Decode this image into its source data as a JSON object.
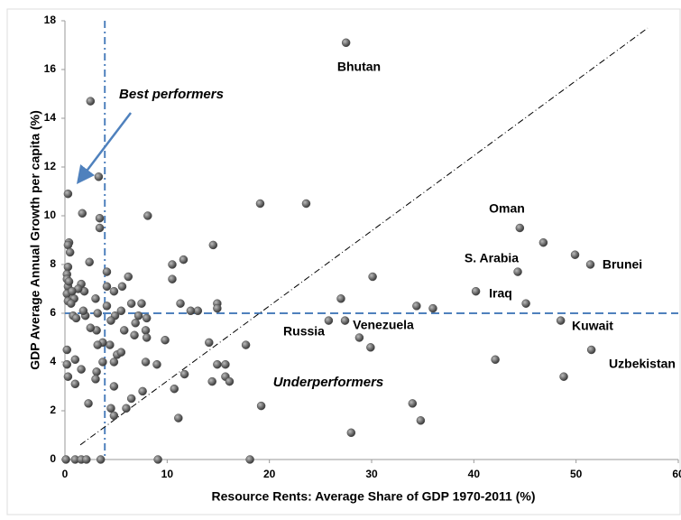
{
  "chart_data": {
    "type": "scatter",
    "x_label": "Resource Rents: Average Share of GDP 1970-2011 (%)",
    "y_label": "GDP Average Annual Growth per capita (%)",
    "xlim": [
      0,
      60
    ],
    "ylim": [
      0,
      18
    ],
    "xticks": [
      0,
      10,
      20,
      30,
      40,
      50,
      60
    ],
    "yticks": [
      0,
      2,
      4,
      6,
      8,
      10,
      12,
      14,
      16,
      18
    ],
    "color": "#4d4d4d",
    "vline": 3.9,
    "hline": 6,
    "diagonal": [
      [
        1.5,
        0.6
      ],
      [
        57,
        17.7
      ]
    ],
    "annotations": [
      "Bhutan",
      "Oman",
      "S. Arabia",
      "Brunei",
      "Iraq",
      "Kuwait",
      "Russia",
      "Venezuela",
      "Uzbekistan",
      "Best performers",
      "Underperformers"
    ],
    "x": [
      27.5,
      2.5,
      3.3,
      0.3,
      1.7,
      3.4,
      3.4,
      8.1,
      19.1,
      23.6,
      0.4,
      0.3,
      0.5,
      2.4,
      14.5,
      11.6,
      10.5,
      10.5,
      4.1,
      6.2,
      5.6,
      4.8,
      6.5,
      7.5,
      11.3,
      13.0,
      12.3,
      14.9,
      14.9,
      44.5,
      46.8,
      49.9,
      51.4,
      44.3,
      30.1,
      40.2,
      27.0,
      45.1,
      34.4,
      36.0,
      25.8,
      27.4,
      48.5,
      28.8,
      29.9,
      51.5,
      42.1,
      48.8,
      34.0,
      34.8,
      28.0,
      19.2,
      11.1,
      9.1,
      18.1,
      17.7,
      15.7,
      14.9,
      15.7,
      16.1,
      14.4,
      14.1,
      11.7,
      10.7,
      9.8,
      9.0,
      7.9,
      7.6,
      6.5,
      6.0,
      4.8,
      4.5,
      4.8,
      4.8,
      5.1,
      5.5,
      3.7,
      4.4,
      3.7,
      3.2,
      3.1,
      3.0,
      2.3,
      1.6,
      1.0,
      1.0,
      0.3,
      0.2,
      0.2,
      5.8,
      6.9,
      7.2,
      8.0,
      7.9,
      6.8,
      8.0,
      4.9,
      4.5,
      5.5,
      4.1,
      4.1,
      3.0,
      3.2,
      3.1,
      2.5,
      2.0,
      1.8,
      1.9,
      1.6,
      1.3,
      0.9,
      0.3,
      0.2,
      0.2,
      0.3,
      0.2,
      0.3,
      0.6,
      0.8,
      1.1,
      0.4,
      0.7,
      0.1,
      1.0,
      1.6,
      2.1,
      3.5
    ],
    "values": [
      17.1,
      14.7,
      11.6,
      10.9,
      10.1,
      9.9,
      9.5,
      10.0,
      10.5,
      10.5,
      8.9,
      8.8,
      8.5,
      8.1,
      8.8,
      8.2,
      8.0,
      7.4,
      7.7,
      7.5,
      7.1,
      6.9,
      6.4,
      6.4,
      6.4,
      6.1,
      6.1,
      6.4,
      6.2,
      9.5,
      8.9,
      8.4,
      8.0,
      7.7,
      7.5,
      6.9,
      6.6,
      6.4,
      6.3,
      6.2,
      5.7,
      5.7,
      5.7,
      5.0,
      4.6,
      4.5,
      4.1,
      3.4,
      2.3,
      1.6,
      1.1,
      2.2,
      1.7,
      0,
      0,
      4.7,
      3.9,
      3.9,
      3.4,
      3.2,
      3.2,
      4.8,
      3.5,
      2.9,
      4.9,
      3.9,
      4.0,
      2.8,
      2.5,
      2.1,
      1.8,
      2.1,
      3.0,
      4.0,
      4.3,
      4.4,
      4.0,
      4.7,
      4.8,
      4.7,
      3.6,
      3.3,
      2.3,
      3.7,
      3.1,
      4.1,
      3.4,
      3.9,
      4.5,
      5.3,
      5.6,
      5.9,
      5.8,
      5.3,
      5.1,
      5.0,
      5.9,
      5.7,
      6.1,
      7.1,
      6.3,
      6.6,
      6.0,
      5.3,
      5.4,
      5.9,
      6.1,
      6.9,
      7.2,
      7.0,
      6.6,
      7.9,
      7.6,
      7.4,
      7.1,
      6.8,
      6.5,
      6.4,
      5.9,
      5.8,
      7.3,
      6.9,
      0,
      0,
      0,
      0,
      0
    ]
  }
}
